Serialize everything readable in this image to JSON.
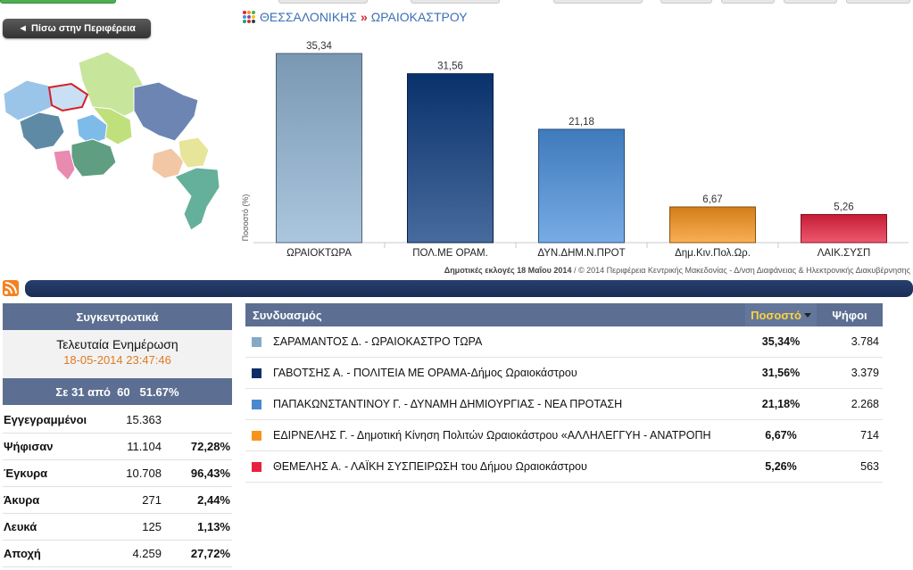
{
  "nav": {
    "back_label": "Πίσω στην Περιφέρεια"
  },
  "breadcrumb": {
    "region": "ΘΕΣΣΑΛΟΝΙΚΗΣ",
    "separator": "»",
    "municipality": "ΩΡΑΙΟΚΑΣΤΡΟΥ"
  },
  "chart_data": {
    "type": "bar",
    "categories": [
      "ΩΡΑΙΟΚΤΩΡΑ",
      "ΠΟΛ.ΜΕ ΟΡΑΜ.",
      "ΔΥΝ.ΔΗΜ.Ν.ΠΡΟΤ",
      "Δημ.Κιν.Πολ.Ωρ.",
      "ΛΑΙΚ.ΣΥΣΠ"
    ],
    "values": [
      35.34,
      31.56,
      21.18,
      6.67,
      5.26
    ],
    "value_labels": [
      "35,34",
      "31,56",
      "21,18",
      "6,67",
      "5,26"
    ],
    "colors": [
      "#8fb3d3",
      "#0b3a7e",
      "#4a90dc",
      "#f7941d",
      "#e8213f"
    ],
    "ylabel": "Ποσοστό (%)",
    "ylim": [
      0,
      37
    ]
  },
  "credit": {
    "bold": "Δημοτικές εκλογές 18 Μαΐου 2014",
    "rest": " / © 2014 Περιφέρεια Κεντρικής Μακεδονίας - Δ/νση Διαφάνειας & Ηλεκτρονικής Διακυβέρνησης"
  },
  "summary": {
    "title": "Συγκεντρωτικά",
    "update_label": "Τελευταία Ενημέρωση",
    "update_time": "18-05-2014 23:47:46",
    "progress": "Σε 31 από  60   51.67%",
    "stats": [
      {
        "label": "Εγγεγραμμένοι",
        "value": "15.363",
        "pct": ""
      },
      {
        "label": "Ψήφισαν",
        "value": "11.104",
        "pct": "72,28%"
      },
      {
        "label": "Έγκυρα",
        "value": "10.708",
        "pct": "96,43%"
      },
      {
        "label": "Άκυρα",
        "value": "271",
        "pct": "2,44%"
      },
      {
        "label": "Λευκά",
        "value": "125",
        "pct": "1,13%"
      },
      {
        "label": "Αποχή",
        "value": "4.259",
        "pct": "27,72%"
      }
    ]
  },
  "table": {
    "col_name": "Συνδυασμός",
    "col_pct": "Ποσοστό",
    "col_votes": "Ψήφοι",
    "rows": [
      {
        "name": "ΣΑΡΑΜΑΝΤΟΣ Δ. - ΩΡΑΙΟΚΑΣΤΡΟ ΤΩΡΑ",
        "pct": "35,34%",
        "votes": "3.784",
        "color": "#86a9c8"
      },
      {
        "name": "ΓΑΒΟΤΣΗΣ Α. - ΠΟΛΙΤΕΙΑ ΜΕ ΟΡΑΜΑ-Δήμος Ωραιοκάστρου",
        "pct": "31,56%",
        "votes": "3.379",
        "color": "#0b2f66"
      },
      {
        "name": "ΠΑΠΑΚΩΝΣΤΑΝΤΙΝΟΥ Γ. - ΔΥΝΑΜΗ ΔΗΜΙΟΥΡΓΙΑΣ - ΝΕΑ ΠΡΟΤΑΣΗ",
        "pct": "21,18%",
        "votes": "2.268",
        "color": "#4a88d0"
      },
      {
        "name": "ΕΔΙΡΝΕΛΗΣ Γ. - Δημοτική Κίνηση Πολιτών Ωραιοκάστρου «ΑΛΛΗΛΕΓΓΥΗ - ΑΝΑΤΡΟΠΗ",
        "pct": "6,67%",
        "votes": "714",
        "color": "#f7941d"
      },
      {
        "name": "ΘΕΜΕΛΗΣ Α. - ΛΑΪΚΗ ΣΥΣΠΕΙΡΩΣΗ του Δήμου Ωραιοκάστρου",
        "pct": "5,26%",
        "votes": "563",
        "color": "#e8213f"
      }
    ]
  }
}
